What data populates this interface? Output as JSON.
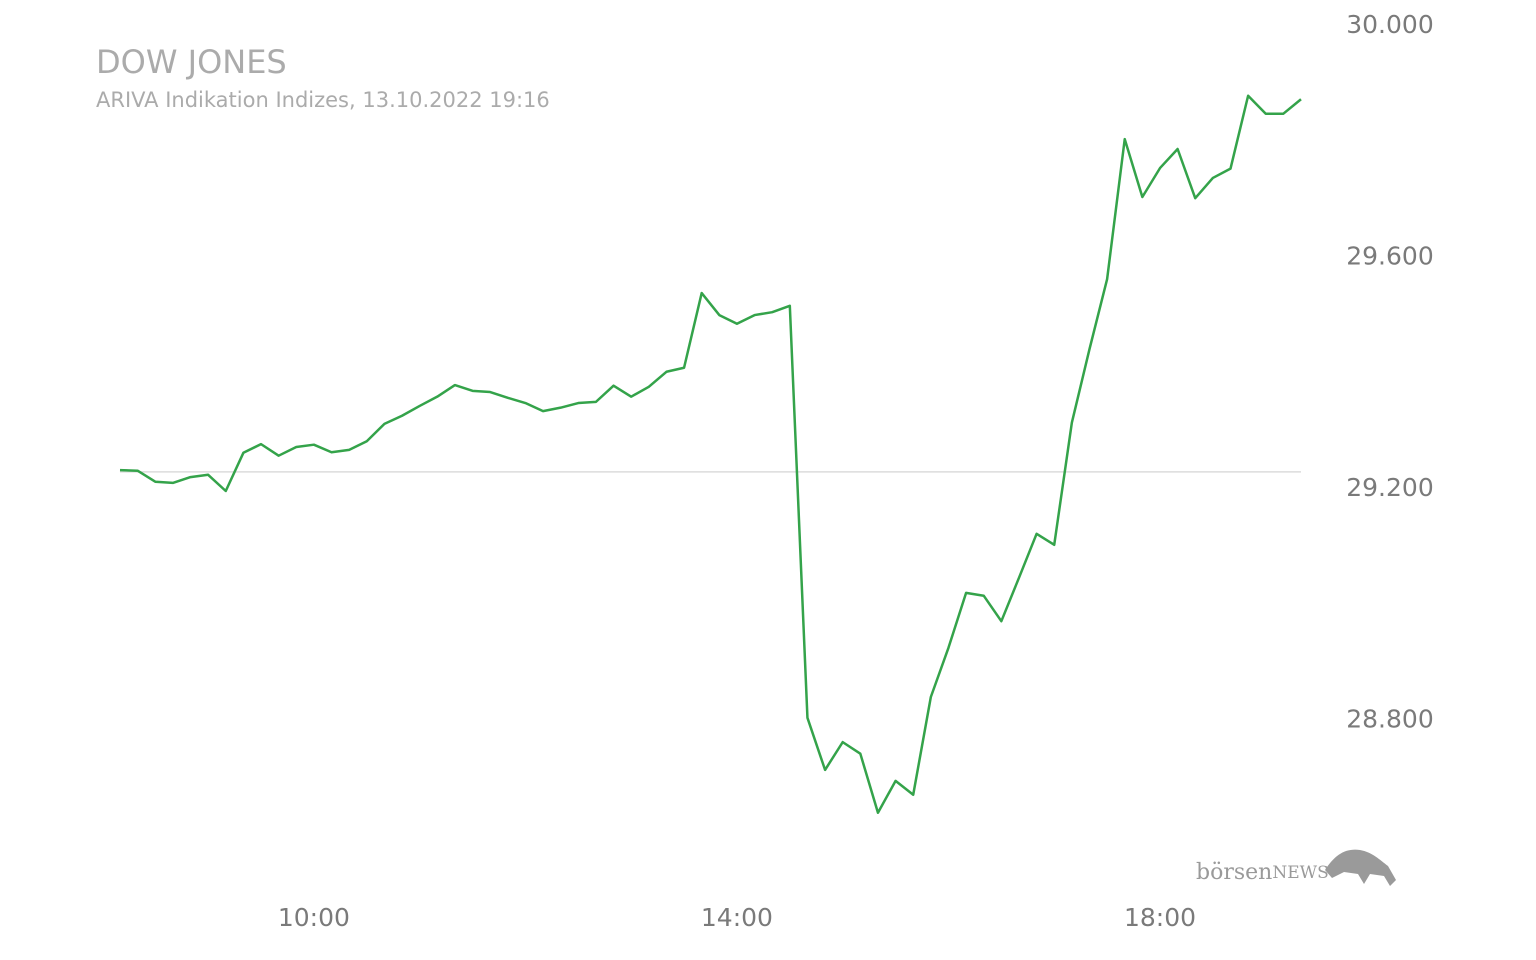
{
  "chart_data": {
    "type": "line",
    "title": "DOW JONES",
    "subtitle": "ARIVA Indikation Indizes, 13.10.2022 19:16",
    "logo": [
      "börsen",
      "NEWS"
    ],
    "x": [
      490,
      500,
      510,
      520,
      530,
      540,
      550,
      560,
      570,
      580,
      590,
      600,
      610,
      620,
      630,
      640,
      650,
      660,
      670,
      680,
      690,
      700,
      710,
      720,
      730,
      740,
      750,
      760,
      770,
      780,
      790,
      800,
      810,
      820,
      830,
      840,
      850,
      860,
      870,
      880,
      890,
      900,
      910,
      920,
      930,
      940,
      950,
      960,
      970,
      980,
      990,
      1000,
      1010,
      1020,
      1030,
      1040,
      1050,
      1060,
      1070,
      1080,
      1090,
      1100,
      1110,
      1120,
      1130,
      1140,
      1150,
      1160
    ],
    "series": [
      {
        "name": "DOW JONES",
        "color": "#34a34a",
        "values": [
          29229,
          29228,
          29209,
          29207,
          29217,
          29221,
          29193,
          29259,
          29274,
          29254,
          29269,
          29273,
          29260,
          29264,
          29279,
          29309,
          29323,
          29340,
          29356,
          29376,
          29366,
          29364,
          29354,
          29345,
          29331,
          29337,
          29345,
          29347,
          29375,
          29356,
          29373,
          29399,
          29406,
          29535,
          29497,
          29482,
          29497,
          29502,
          29513,
          28801,
          28711,
          28759,
          28739,
          28637,
          28692,
          28668,
          28837,
          28922,
          29017,
          29012,
          28968,
          29043,
          29119,
          29100,
          29311,
          29438,
          29559,
          29801,
          29701,
          29751,
          29784,
          29699,
          29734,
          29750,
          29876,
          29845,
          29845,
          29870
        ]
      }
    ],
    "reference_line": 29226,
    "xlim": [
      490,
      1160
    ],
    "xticks": [
      {
        "value": 600,
        "label": "10:00"
      },
      {
        "value": 840,
        "label": "14:00"
      },
      {
        "value": 1080,
        "label": "18:00"
      }
    ],
    "ylim": [
      28500,
      30000
    ],
    "yticks": [
      {
        "value": 28800,
        "label": "28.800"
      },
      {
        "value": 29200,
        "label": "29.200"
      },
      {
        "value": 29600,
        "label": "29.600"
      },
      {
        "value": 30000,
        "label": "30.000"
      }
    ]
  }
}
